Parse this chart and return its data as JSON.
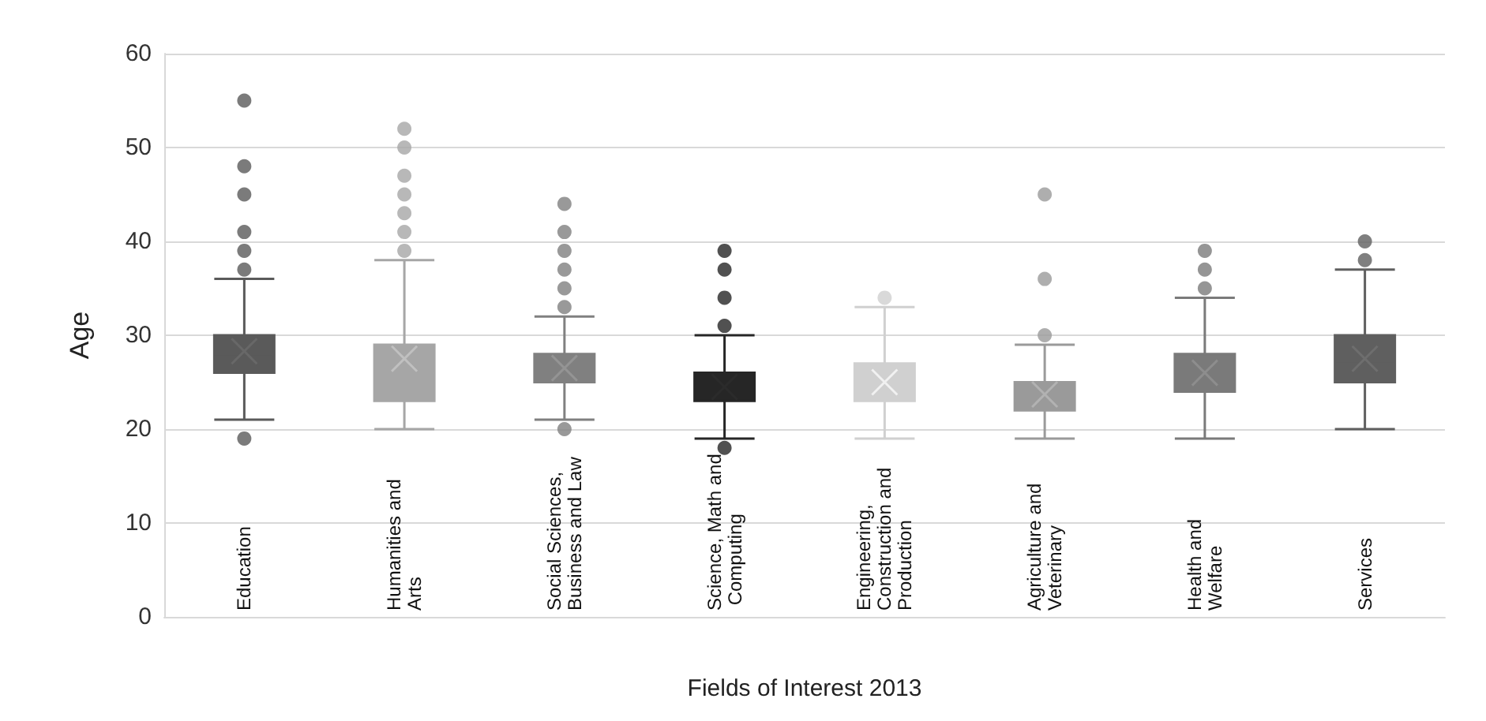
{
  "chart_data": {
    "type": "box",
    "xlabel": "Fields of Interest 2013",
    "ylabel": "Age",
    "categories": [
      "Education",
      "Humanities and Arts",
      "Social Sciences, Business and Law",
      "Science, Math and Computing",
      "Engineering, Construction and Production",
      "Agriculture and Veterinary",
      "Health and Welfare",
      "Services"
    ],
    "colors": [
      "#5a5a5a",
      "#a6a6a6",
      "#808080",
      "#262626",
      "#d0d0d0",
      "#9a9a9a",
      "#7a7a7a",
      "#5f5f5f"
    ],
    "ylim": [
      0,
      60
    ],
    "yticks": [
      0,
      10,
      20,
      30,
      40,
      50,
      60
    ],
    "grid": "y",
    "boxes": [
      {
        "low": 21,
        "q1": 26,
        "median": 28,
        "q3": 30,
        "high": 36,
        "mean": 28.3,
        "outliers": [
          55,
          48,
          45,
          41,
          39,
          37,
          19
        ]
      },
      {
        "low": 20,
        "q1": 23,
        "median": 26,
        "q3": 29,
        "high": 38,
        "mean": 27.5,
        "outliers": [
          52,
          50,
          47,
          45,
          43,
          41,
          39
        ]
      },
      {
        "low": 21,
        "q1": 25,
        "median": 26,
        "q3": 28,
        "high": 32,
        "mean": 26.5,
        "outliers": [
          44,
          41,
          39,
          37,
          35,
          33,
          20
        ]
      },
      {
        "low": 19,
        "q1": 23,
        "median": 24.5,
        "q3": 26,
        "high": 30,
        "mean": 24.5,
        "outliers": [
          39,
          37,
          34,
          31,
          18
        ]
      },
      {
        "low": 19,
        "q1": 23,
        "median": 25,
        "q3": 27,
        "high": 33,
        "mean": 25,
        "outliers": [
          34
        ]
      },
      {
        "low": 19,
        "q1": 22,
        "median": 23,
        "q3": 25,
        "high": 29,
        "mean": 23.7,
        "outliers": [
          45,
          36,
          30
        ]
      },
      {
        "low": 19,
        "q1": 24,
        "median": 25,
        "q3": 28,
        "high": 34,
        "mean": 26,
        "outliers": [
          39,
          37,
          35
        ]
      },
      {
        "low": 20,
        "q1": 25,
        "median": 27,
        "q3": 30,
        "high": 37,
        "mean": 27.5,
        "outliers": [
          40,
          38
        ]
      }
    ]
  }
}
